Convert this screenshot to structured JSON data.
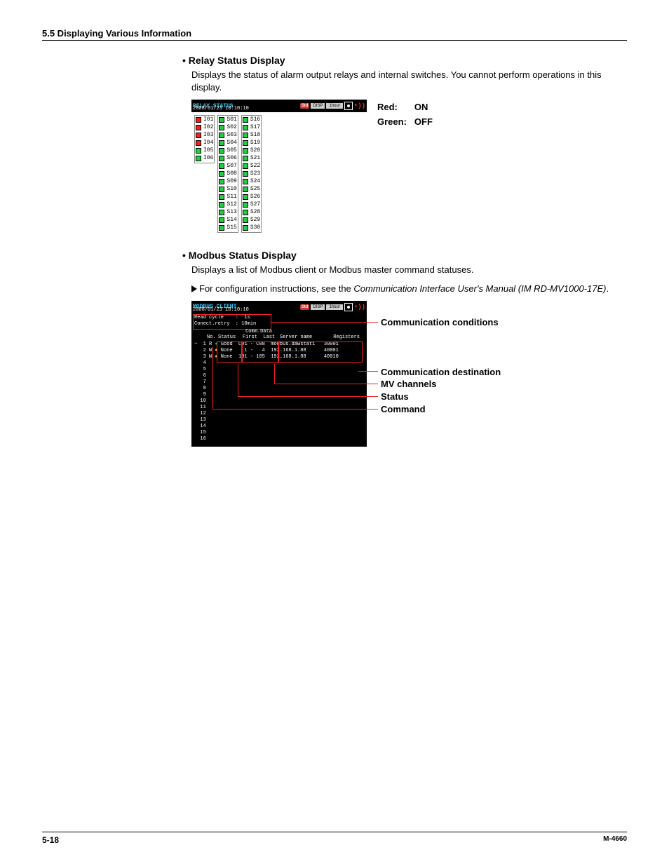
{
  "header": {
    "section": "5.5  Displaying Various Information"
  },
  "relay": {
    "title": "Relay Status Display",
    "desc": "Displays the status of alarm output relays and internal switches. You cannot perform operations in this display.",
    "screen_title": "RELAY STATUS",
    "screen_date": "2008/01/23 10:10:10",
    "badge": "Std",
    "disp": "DISP",
    "time": "1hour",
    "col1": [
      {
        "label": "I01",
        "c": "red"
      },
      {
        "label": "I02",
        "c": "red"
      },
      {
        "label": "I03",
        "c": "red"
      },
      {
        "label": "I04",
        "c": "red"
      },
      {
        "label": "I05",
        "c": "green"
      },
      {
        "label": "I06",
        "c": "green"
      }
    ],
    "col2": [
      {
        "label": "S01",
        "c": "green"
      },
      {
        "label": "S02",
        "c": "green"
      },
      {
        "label": "S03",
        "c": "green"
      },
      {
        "label": "S04",
        "c": "green"
      },
      {
        "label": "S05",
        "c": "green"
      },
      {
        "label": "S06",
        "c": "green"
      },
      {
        "label": "S07",
        "c": "green"
      },
      {
        "label": "S08",
        "c": "green"
      },
      {
        "label": "S09",
        "c": "green"
      },
      {
        "label": "S10",
        "c": "green"
      },
      {
        "label": "S11",
        "c": "green"
      },
      {
        "label": "S12",
        "c": "green"
      },
      {
        "label": "S13",
        "c": "green"
      },
      {
        "label": "S14",
        "c": "green"
      },
      {
        "label": "S15",
        "c": "green"
      }
    ],
    "col3": [
      {
        "label": "S16",
        "c": "green"
      },
      {
        "label": "S17",
        "c": "green"
      },
      {
        "label": "S18",
        "c": "green"
      },
      {
        "label": "S19",
        "c": "green"
      },
      {
        "label": "S20",
        "c": "green"
      },
      {
        "label": "S21",
        "c": "green"
      },
      {
        "label": "S22",
        "c": "green"
      },
      {
        "label": "S23",
        "c": "green"
      },
      {
        "label": "S24",
        "c": "green"
      },
      {
        "label": "S25",
        "c": "green"
      },
      {
        "label": "S26",
        "c": "green"
      },
      {
        "label": "S27",
        "c": "green"
      },
      {
        "label": "S28",
        "c": "green"
      },
      {
        "label": "S29",
        "c": "green"
      },
      {
        "label": "S30",
        "c": "green"
      }
    ],
    "legend": {
      "red_label": "Red:",
      "red_val": "ON",
      "green_label": "Green:",
      "green_val": "OFF"
    }
  },
  "modbus": {
    "title": "Modbus Status Display",
    "desc": "Displays a list of Modbus client or Modbus master command statuses.",
    "ref_prefix": "For configuration instructions, see the ",
    "ref_italic": "Communication Interface User's Manual (IM RD-MV1000-17E)",
    "ref_suffix": ".",
    "screen_title": "MODBUS CLIENT",
    "screen_date": "2008/01/23 10:10:10",
    "cond_line1": "Read cycle    :  1s",
    "cond_line2": "Conect.retry  : 10min",
    "headers": {
      "comm": "Comm.Data",
      "no": "No.",
      "status": "Status",
      "first": "First",
      "last": "Last",
      "server": "Server name",
      "registers": "Registers"
    },
    "rows": [
      {
        "no": " 1",
        "rw": "R",
        "dot": "g",
        "stat": "Good",
        "first": "C01",
        "last": "C08",
        "srv": "modbus.dawstat1",
        "reg": "30001"
      },
      {
        "no": " 2",
        "rw": "W",
        "dot": "y",
        "stat": "None",
        "first": "  1",
        "last": "  4",
        "srv": "192.168.1.88   ",
        "reg": "40001"
      },
      {
        "no": " 3",
        "rw": "W",
        "dot": "y",
        "stat": "None",
        "first": "101",
        "last": "105",
        "srv": "192.168.1.88   ",
        "reg": "40010"
      },
      {
        "no": " 4"
      },
      {
        "no": " 5"
      },
      {
        "no": " 6"
      },
      {
        "no": " 7"
      },
      {
        "no": " 8"
      },
      {
        "no": " 9"
      },
      {
        "no": "10"
      },
      {
        "no": "11"
      },
      {
        "no": "12"
      },
      {
        "no": "13"
      },
      {
        "no": "14"
      },
      {
        "no": "15"
      },
      {
        "no": "16"
      }
    ],
    "callouts": {
      "c1": "Communication conditions",
      "c2": "Communication destination",
      "c3": "MV channels",
      "c4": "Status",
      "c5": "Command"
    }
  },
  "footer": {
    "left": "5-18",
    "right": "M-4660"
  }
}
